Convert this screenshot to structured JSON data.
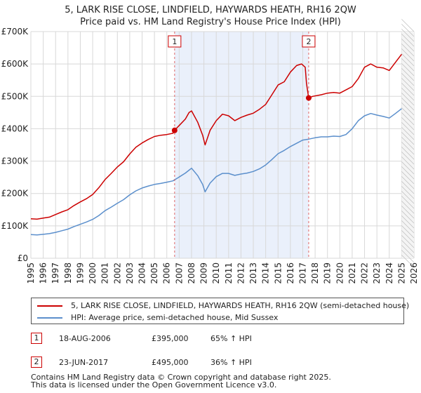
{
  "chart_data": {
    "type": "line",
    "title": "5, LARK RISE CLOSE, LINDFIELD, HAYWARDS HEATH, RH16 2QW",
    "subtitle": "Price paid vs. HM Land Registry's House Price Index (HPI)",
    "xlabel": "",
    "ylabel": "",
    "xlim": [
      1995,
      2026
    ],
    "ylim": [
      0,
      700000
    ],
    "x_ticks": [
      "1995",
      "1996",
      "1997",
      "1998",
      "1999",
      "2000",
      "2001",
      "2002",
      "2003",
      "2004",
      "2005",
      "2006",
      "2007",
      "2008",
      "2009",
      "2010",
      "2011",
      "2012",
      "2013",
      "2014",
      "2015",
      "2016",
      "2017",
      "2018",
      "2019",
      "2020",
      "2021",
      "2022",
      "2023",
      "2024",
      "2025",
      "2026"
    ],
    "y_ticks": [
      {
        "value": 0,
        "label": "£0"
      },
      {
        "value": 100000,
        "label": "£100K"
      },
      {
        "value": 200000,
        "label": "£200K"
      },
      {
        "value": 300000,
        "label": "£300K"
      },
      {
        "value": 400000,
        "label": "£400K"
      },
      {
        "value": 500000,
        "label": "£500K"
      },
      {
        "value": 600000,
        "label": "£600K"
      },
      {
        "value": 700000,
        "label": "£700K"
      }
    ],
    "grid": true,
    "series": [
      {
        "name": "5, LARK RISE CLOSE, LINDFIELD, HAYWARDS HEATH, RH16 2QW (semi-detached house)",
        "color": "#cc0000",
        "x": [
          1995.0,
          1995.5,
          1996.0,
          1996.5,
          1997.0,
          1997.5,
          1998.0,
          1998.5,
          1999.0,
          1999.5,
          2000.0,
          2000.5,
          2001.0,
          2001.5,
          2002.0,
          2002.5,
          2003.0,
          2003.5,
          2004.0,
          2004.5,
          2005.0,
          2005.5,
          2006.0,
          2006.5,
          2006.63,
          2007.0,
          2007.5,
          2007.8,
          2008.0,
          2008.5,
          2008.9,
          2009.1,
          2009.5,
          2010.0,
          2010.5,
          2011.0,
          2011.5,
          2012.0,
          2012.5,
          2013.0,
          2013.5,
          2014.0,
          2014.5,
          2015.0,
          2015.5,
          2016.0,
          2016.5,
          2016.9,
          2017.2,
          2017.3,
          2017.48,
          2017.8,
          2018.5,
          2019.0,
          2019.5,
          2020.0,
          2020.5,
          2021.0,
          2021.5,
          2022.0,
          2022.5,
          2023.0,
          2023.5,
          2024.0,
          2024.5,
          2025.0
        ],
        "values": [
          122000,
          121000,
          124000,
          127000,
          135000,
          143000,
          150000,
          163000,
          174000,
          184000,
          197000,
          218000,
          243000,
          262000,
          282000,
          298000,
          322000,
          343000,
          356000,
          367000,
          376000,
          380000,
          382000,
          386000,
          395000,
          410000,
          430000,
          450000,
          455000,
          420000,
          380000,
          350000,
          395000,
          425000,
          445000,
          440000,
          425000,
          435000,
          442000,
          448000,
          460000,
          475000,
          505000,
          535000,
          545000,
          575000,
          595000,
          600000,
          590000,
          540000,
          495000,
          500000,
          505000,
          510000,
          512000,
          510000,
          520000,
          530000,
          555000,
          590000,
          600000,
          590000,
          588000,
          580000,
          605000,
          630000
        ]
      },
      {
        "name": "HPI: Average price, semi-detached house, Mid Sussex",
        "color": "#5b8fcc",
        "x": [
          1995.0,
          1995.5,
          1996.0,
          1996.5,
          1997.0,
          1997.5,
          1998.0,
          1998.5,
          1999.0,
          1999.5,
          2000.0,
          2000.5,
          2001.0,
          2001.5,
          2002.0,
          2002.5,
          2003.0,
          2003.5,
          2004.0,
          2004.5,
          2005.0,
          2005.5,
          2006.0,
          2006.5,
          2007.0,
          2007.5,
          2007.8,
          2008.0,
          2008.5,
          2008.9,
          2009.1,
          2009.5,
          2010.0,
          2010.5,
          2011.0,
          2011.5,
          2012.0,
          2012.5,
          2013.0,
          2013.5,
          2014.0,
          2014.5,
          2015.0,
          2015.5,
          2016.0,
          2016.5,
          2017.0,
          2017.5,
          2018.0,
          2018.5,
          2019.0,
          2019.5,
          2020.0,
          2020.5,
          2021.0,
          2021.5,
          2022.0,
          2022.5,
          2023.0,
          2023.5,
          2024.0,
          2024.5,
          2025.0
        ],
        "values": [
          73000,
          72000,
          74000,
          76000,
          80000,
          85000,
          90000,
          98000,
          105000,
          112000,
          120000,
          132000,
          147000,
          158000,
          170000,
          181000,
          196000,
          208000,
          217000,
          223000,
          228000,
          231000,
          235000,
          239000,
          251000,
          263000,
          272000,
          278000,
          255000,
          228000,
          205000,
          232000,
          252000,
          262000,
          262000,
          256000,
          260000,
          263000,
          268000,
          276000,
          288000,
          305000,
          323000,
          333000,
          345000,
          355000,
          365000,
          368000,
          372000,
          375000,
          375000,
          377000,
          376000,
          382000,
          400000,
          425000,
          440000,
          447000,
          442000,
          438000,
          433000,
          447000,
          462000
        ]
      }
    ],
    "annotations": [
      {
        "label": "1",
        "x": 2006.63,
        "value": 395000
      },
      {
        "label": "2",
        "x": 2017.48,
        "value": 495000
      }
    ]
  },
  "legend": {
    "property_label": "5, LARK RISE CLOSE, LINDFIELD, HAYWARDS HEATH, RH16 2QW (semi-detached house)",
    "hpi_label": "HPI: Average price, semi-detached house, Mid Sussex",
    "property_color": "#cc0000",
    "hpi_color": "#5b8fcc"
  },
  "sales": [
    {
      "badge": "1",
      "date": "18-AUG-2006",
      "price": "£395,000",
      "hpi": "65% ↑ HPI"
    },
    {
      "badge": "2",
      "date": "23-JUN-2017",
      "price": "£495,000",
      "hpi": "36% ↑ HPI"
    }
  ],
  "footer": {
    "line1": "Contains HM Land Registry data © Crown copyright and database right 2025.",
    "line2": "This data is licensed under the Open Government Licence v3.0."
  }
}
